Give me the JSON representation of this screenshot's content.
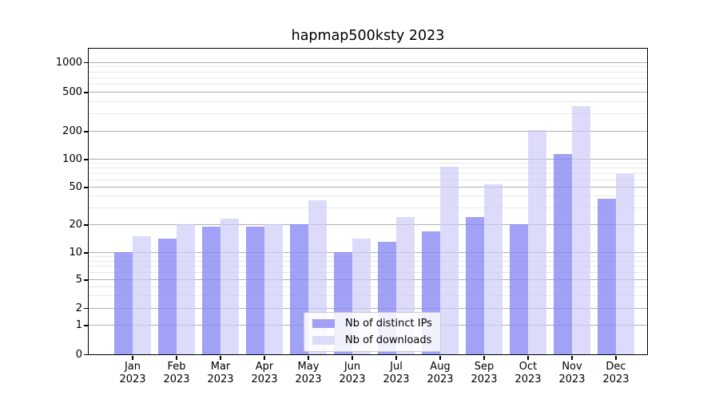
{
  "figure": {
    "title": "hapmap500ksty 2023"
  },
  "chart_data": {
    "type": "bar",
    "title": "hapmap500ksty 2023",
    "categories": [
      "Jan",
      "Feb",
      "Mar",
      "Apr",
      "May",
      "Jun",
      "Jul",
      "Aug",
      "Sep",
      "Oct",
      "Nov",
      "Dec"
    ],
    "category_year": "2023",
    "series": [
      {
        "name": "Nb of distinct IPs",
        "values": [
          10,
          14,
          19,
          19,
          20,
          10,
          13,
          17,
          24,
          20,
          114,
          38
        ]
      },
      {
        "name": "Nb of downloads",
        "values": [
          15,
          20,
          23,
          20,
          36,
          14,
          24,
          83,
          54,
          205,
          360,
          70
        ]
      }
    ],
    "yscale": "symlog",
    "yticks": [
      0,
      1,
      2,
      5,
      10,
      20,
      50,
      100,
      200,
      500,
      1000
    ],
    "minor_gridline_values": [
      3,
      4,
      6,
      7,
      8,
      9,
      30,
      40,
      60,
      70,
      80,
      90,
      300,
      400,
      600,
      700,
      800,
      900
    ],
    "ylim": [
      0,
      1400
    ],
    "xlabel": "",
    "ylabel": "",
    "grid": "both",
    "legend_position": "lower center inside axes"
  },
  "legend": {
    "items": [
      {
        "label": "Nb of distinct IPs",
        "swatch_color": "rgba(134,134,242,0.78)"
      },
      {
        "label": "Nb of downloads",
        "swatch_color": "rgba(203,203,248,0.68)"
      }
    ]
  },
  "colors": {
    "distinct_ips_bar": "rgba(134,134,242,0.78)",
    "downloads_bar": "rgba(203,203,248,0.68)",
    "major_grid": "#b0b0b0",
    "minor_grid": "#e9e9e9",
    "axis": "#000000",
    "background": "#ffffff",
    "text": "#000000"
  }
}
